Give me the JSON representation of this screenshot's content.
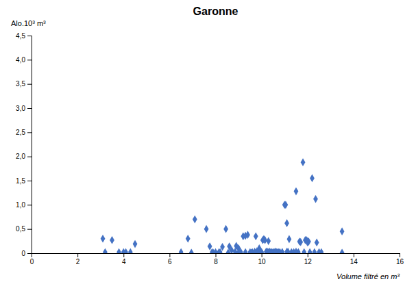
{
  "chart_data": {
    "type": "scatter",
    "title": "Garonne",
    "x_label": "Volume filtré en m³",
    "y_label": "Alo.10³ m³",
    "xlim": [
      0,
      16
    ],
    "ylim": [
      0,
      4.5
    ],
    "xticks": [
      0,
      2,
      4,
      6,
      8,
      10,
      12,
      14,
      16
    ],
    "yticks": [
      0,
      {
        "value": 0.5,
        "label": "0,5"
      },
      {
        "value": 1.0,
        "label": "1,0"
      },
      {
        "value": 1.5,
        "label": "1,5"
      },
      {
        "value": 2.0,
        "label": "2,0"
      },
      {
        "value": 2.5,
        "label": "2,5"
      },
      {
        "value": 3.0,
        "label": "3,0"
      },
      {
        "value": 3.5,
        "label": "3,5"
      },
      {
        "value": 4.0,
        "label": "4,0"
      },
      {
        "value": 4.5,
        "label": "4,5"
      }
    ],
    "grid": false,
    "color": "#4472C4",
    "marker": "diamond",
    "x": [
      3.1,
      3.5,
      3.8,
      4.0,
      4.1,
      4.5,
      6.8,
      6.95,
      7.1,
      7.6,
      7.75,
      7.85,
      8.0,
      8.15,
      8.3,
      8.45,
      8.55,
      8.6,
      8.7,
      8.85,
      8.9,
      9.0,
      9.1,
      9.2,
      9.3,
      9.4,
      9.5,
      9.55,
      9.6,
      9.7,
      9.75,
      9.8,
      9.85,
      9.9,
      9.95,
      10.0,
      10.05,
      10.1,
      10.15,
      10.2,
      10.25,
      10.3,
      10.35,
      10.4,
      10.45,
      10.5,
      10.55,
      10.6,
      10.65,
      10.7,
      10.75,
      10.8,
      10.9,
      11.0,
      11.05,
      11.1,
      11.15,
      11.2,
      11.3,
      11.4,
      11.5,
      11.6,
      11.65,
      11.7,
      11.8,
      11.85,
      11.9,
      11.95,
      12.0,
      12.05,
      12.1,
      12.2,
      12.3,
      12.35,
      12.5,
      12.6,
      13.5,
      3.2,
      4.3,
      6.5,
      7.9,
      8.2,
      9.0,
      9.3,
      9.7,
      10.0,
      10.3,
      10.6,
      10.9,
      11.1,
      11.5,
      12.0,
      12.4,
      13.5
    ],
    "y": [
      0.3,
      0.27,
      0.02,
      0.02,
      0.02,
      0.19,
      0.3,
      0.01,
      0.7,
      0.5,
      0.14,
      0.02,
      0.02,
      0.02,
      0.13,
      0.5,
      0.01,
      0.14,
      0.06,
      0.03,
      0.15,
      0.1,
      0.02,
      0.35,
      0.36,
      0.38,
      0.02,
      0.01,
      0.02,
      0.03,
      0.35,
      0.04,
      0.03,
      0.1,
      0.02,
      0.02,
      0.27,
      0.29,
      0.27,
      0.03,
      0.03,
      0.25,
      0.03,
      0.02,
      0.02,
      0.02,
      0.02,
      0.03,
      0.02,
      0.02,
      0.02,
      0.02,
      0.02,
      1.0,
      1.0,
      0.62,
      0.03,
      0.29,
      0.02,
      0.02,
      1.28,
      0.02,
      0.24,
      0.23,
      1.88,
      0.02,
      0.27,
      0.27,
      0.25,
      0.24,
      0.02,
      1.55,
      0.02,
      1.12,
      0.02,
      0.02,
      0.45,
      0.02,
      0.02,
      0.02,
      0.01,
      0.02,
      0.01,
      0.02,
      0.01,
      0.02,
      0.02,
      0.02,
      0.02,
      0.03,
      0.03,
      0.22,
      0.22,
      0.01
    ]
  }
}
